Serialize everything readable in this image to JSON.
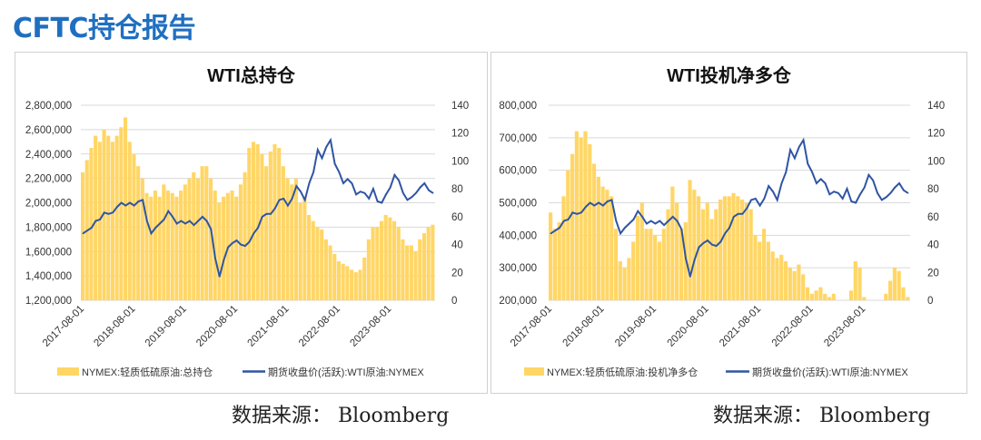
{
  "page_title": "CFTC持仓报告",
  "source_label": "数据来源：",
  "source_name": "Bloomberg",
  "colors": {
    "bars": "#FFD666",
    "line": "#2F55A4",
    "title": "#1F6FC0",
    "grid": "#D9D9D9"
  },
  "chart_data": [
    {
      "type": "bar+line",
      "title": "WTI总持仓",
      "x_ticks": [
        "2017-08-01",
        "2018-08-01",
        "2019-08-01",
        "2020-08-01",
        "2021-08-01",
        "2022-08-01",
        "2023-08-01"
      ],
      "x_start": "2017-08",
      "x_interval": "monthly",
      "left_axis": {
        "ylim": [
          1200000,
          2800000
        ],
        "ticks": [
          "1,200,000",
          "1,400,000",
          "1,600,000",
          "1,800,000",
          "2,000,000",
          "2,200,000",
          "2,400,000",
          "2,600,000",
          "2,800,000"
        ],
        "tick_values": [
          1200000,
          1400000,
          1600000,
          1800000,
          2000000,
          2200000,
          2400000,
          2600000,
          2800000
        ]
      },
      "right_axis": {
        "ylim": [
          0,
          140
        ],
        "ticks": [
          "0",
          "20",
          "40",
          "60",
          "80",
          "100",
          "120",
          "140"
        ],
        "tick_values": [
          0,
          20,
          40,
          60,
          80,
          100,
          120,
          140
        ]
      },
      "grid": true,
      "legend_position": "bottom",
      "series": [
        {
          "name": "NYMEX:轻质低硫原油:总持仓",
          "type": "bar",
          "axis": "left",
          "values": [
            2250000,
            2350000,
            2450000,
            2550000,
            2500000,
            2600000,
            2550000,
            2500000,
            2550000,
            2620000,
            2700000,
            2500000,
            2400000,
            2300000,
            2200000,
            2080000,
            2050000,
            2100000,
            2050000,
            2150000,
            2100000,
            2080000,
            2050000,
            2100000,
            2150000,
            2200000,
            2250000,
            2200000,
            2300000,
            2300000,
            2200000,
            2100000,
            2000000,
            2050000,
            2080000,
            2100000,
            2050000,
            2150000,
            2250000,
            2450000,
            2500000,
            2480000,
            2400000,
            2300000,
            2420000,
            2480000,
            2450000,
            2300000,
            2200000,
            2150000,
            2200000,
            2000000,
            2050000,
            1900000,
            1850000,
            1800000,
            1780000,
            1700000,
            1650000,
            1580000,
            1520000,
            1500000,
            1480000,
            1450000,
            1430000,
            1450000,
            1550000,
            1700000,
            1800000,
            1800000,
            1850000,
            1900000,
            1880000,
            1850000,
            1800000,
            1700000,
            1650000,
            1650000,
            1600000,
            1700000,
            1750000,
            1800000,
            1820000
          ]
        },
        {
          "name": "期货收盘价(活跃):WTI原油:NYMEX",
          "type": "line",
          "axis": "right",
          "values": [
            48,
            50,
            52,
            57,
            58,
            63,
            62,
            63,
            67,
            70,
            68,
            70,
            68,
            71,
            72,
            57,
            48,
            52,
            55,
            58,
            64,
            60,
            55,
            57,
            55,
            57,
            54,
            57,
            60,
            57,
            51,
            30,
            17,
            29,
            38,
            41,
            43,
            40,
            39,
            42,
            48,
            52,
            60,
            62,
            62,
            66,
            72,
            73,
            68,
            73,
            82,
            78,
            72,
            84,
            92,
            108,
            102,
            110,
            115,
            98,
            92,
            84,
            87,
            84,
            76,
            78,
            77,
            73,
            80,
            71,
            70,
            76,
            81,
            90,
            86,
            77,
            72,
            74,
            77,
            81,
            84,
            79,
            77
          ]
        }
      ]
    },
    {
      "type": "bar+line",
      "title": "WTI投机净多仓",
      "x_ticks": [
        "2017-08-01",
        "2018-08-01",
        "2019-08-01",
        "2020-08-01",
        "2021-08-01",
        "2022-08-01",
        "2023-08-01"
      ],
      "x_start": "2017-08",
      "x_interval": "monthly",
      "left_axis": {
        "ylim": [
          200000,
          800000
        ],
        "ticks": [
          "200,000",
          "300,000",
          "400,000",
          "500,000",
          "600,000",
          "700,000",
          "800,000"
        ],
        "tick_values": [
          200000,
          300000,
          400000,
          500000,
          600000,
          700000,
          800000
        ]
      },
      "right_axis": {
        "ylim": [
          0,
          140
        ],
        "ticks": [
          "0",
          "20",
          "40",
          "60",
          "80",
          "100",
          "120",
          "140"
        ],
        "tick_values": [
          0,
          20,
          40,
          60,
          80,
          100,
          120,
          140
        ]
      },
      "grid": true,
      "legend_position": "bottom",
      "series": [
        {
          "name": "NYMEX:轻质低硫原油:投机净多仓",
          "type": "bar",
          "axis": "left",
          "values": [
            470000,
            420000,
            440000,
            520000,
            600000,
            650000,
            720000,
            700000,
            720000,
            680000,
            620000,
            580000,
            550000,
            540000,
            520000,
            420000,
            320000,
            300000,
            330000,
            380000,
            460000,
            500000,
            420000,
            420000,
            400000,
            380000,
            420000,
            480000,
            550000,
            500000,
            420000,
            440000,
            570000,
            540000,
            520000,
            480000,
            500000,
            450000,
            480000,
            510000,
            520000,
            520000,
            530000,
            520000,
            510000,
            500000,
            480000,
            400000,
            380000,
            420000,
            380000,
            350000,
            330000,
            340000,
            320000,
            300000,
            290000,
            310000,
            280000,
            240000,
            220000,
            230000,
            240000,
            220000,
            210000,
            220000,
            200000,
            200000,
            200000,
            230000,
            320000,
            300000,
            210000,
            200000,
            200000,
            200000,
            200000,
            220000,
            260000,
            300000,
            290000,
            240000,
            210000
          ]
        },
        {
          "name": "期货收盘价(活跃):WTI原油:NYMEX",
          "type": "line",
          "axis": "right",
          "values": [
            48,
            50,
            52,
            57,
            58,
            63,
            62,
            63,
            67,
            70,
            68,
            70,
            68,
            71,
            72,
            57,
            48,
            52,
            55,
            58,
            64,
            60,
            55,
            57,
            55,
            57,
            54,
            57,
            60,
            57,
            51,
            30,
            17,
            29,
            38,
            41,
            43,
            40,
            39,
            42,
            48,
            52,
            60,
            62,
            62,
            66,
            72,
            73,
            68,
            73,
            82,
            78,
            72,
            84,
            92,
            108,
            102,
            110,
            115,
            98,
            92,
            84,
            87,
            84,
            76,
            78,
            77,
            73,
            80,
            71,
            70,
            76,
            81,
            90,
            86,
            77,
            72,
            74,
            77,
            81,
            84,
            79,
            77
          ]
        }
      ]
    }
  ]
}
